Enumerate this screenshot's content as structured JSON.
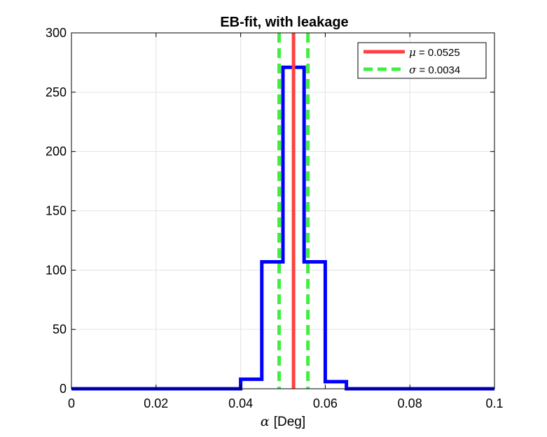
{
  "chart_data": {
    "type": "histogram",
    "title": "EB-fit, with leakage",
    "xlabel_symbol": "α",
    "xlabel_unit": "[Deg]",
    "xlim": [
      0,
      0.1
    ],
    "ylim": [
      0,
      300
    ],
    "xticks": [
      0,
      0.02,
      0.04,
      0.06,
      0.08,
      0.1
    ],
    "xtick_labels": [
      "0",
      "0.02",
      "0.04",
      "0.06",
      "0.08",
      "0.1"
    ],
    "yticks": [
      0,
      50,
      100,
      150,
      200,
      250,
      300
    ],
    "ytick_labels": [
      "0",
      "50",
      "100",
      "150",
      "200",
      "250",
      "300"
    ],
    "grid": true,
    "legend_position": "top-right",
    "bin_edges": [
      0,
      0.005,
      0.01,
      0.015,
      0.02,
      0.025,
      0.03,
      0.035,
      0.04,
      0.045,
      0.05,
      0.055,
      0.06,
      0.065,
      0.07,
      0.075,
      0.08,
      0.085,
      0.09,
      0.095,
      0.1
    ],
    "counts": [
      0,
      0,
      0,
      0,
      0,
      0,
      0,
      0,
      8,
      107,
      271,
      107,
      6,
      0,
      0,
      0,
      0,
      0,
      0,
      0
    ],
    "histogram_color": "#0000ff",
    "mean": {
      "value": 0.0525,
      "symbol": "μ",
      "label": " = 0.0525",
      "color": "#ff4040"
    },
    "sigma": {
      "value": 0.0034,
      "symbol": "σ",
      "label": " = 0.0034",
      "color": "#40ee40"
    }
  }
}
